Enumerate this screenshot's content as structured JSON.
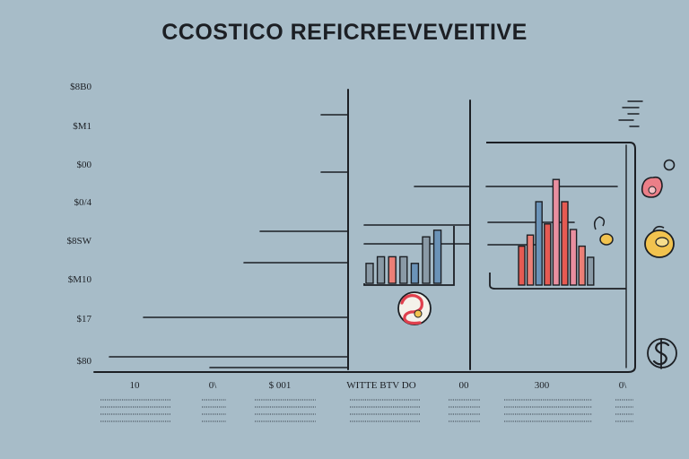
{
  "chart_data": {
    "type": "bar",
    "title": "CCOSTICO REFICREEVEVEITIVE",
    "y_tick_labels": [
      "$8B0",
      "$M1",
      "$00",
      "$0/4",
      "$8SW",
      "$M10",
      "$17",
      "$80"
    ],
    "x_tick_labels": [
      "10",
      "0\\",
      "$ 001",
      "WITTE  BTV DO",
      "00",
      "300",
      "0\\"
    ],
    "grid": false,
    "series": [
      {
        "values": [
          3,
          4,
          4,
          4,
          3,
          7,
          8
        ]
      },
      {
        "values": [
          7,
          9,
          15,
          11,
          19,
          15,
          10,
          7,
          5
        ]
      }
    ],
    "colors": {
      "background": "#a7bcc8",
      "ink": "#1c1f24",
      "bar_gray": "#8a9aa6",
      "bar_blue": "#6b93b8",
      "bar_red": "#e65a52",
      "bar_coral": "#ec7f76",
      "bar_pink": "#e98fa0",
      "bar_yellow": "#f2c34f"
    }
  }
}
